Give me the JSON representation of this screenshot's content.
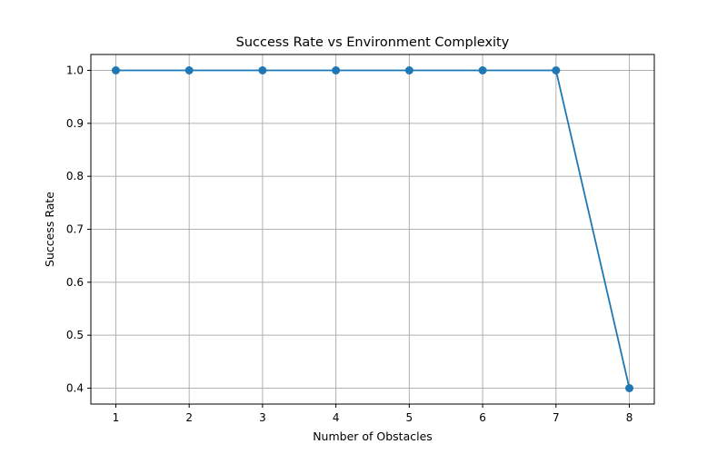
{
  "chart_data": {
    "type": "line",
    "title": "Success Rate vs Environment Complexity",
    "xlabel": "Number of Obstacles",
    "ylabel": "Success Rate",
    "xlim": [
      0.66,
      8.34
    ],
    "ylim": [
      0.37,
      1.03
    ],
    "xticks": [
      1,
      2,
      3,
      4,
      5,
      6,
      7,
      8
    ],
    "yticks": [
      0.4,
      0.5,
      0.6,
      0.7,
      0.8,
      0.9,
      1.0
    ],
    "ytick_labels": [
      "0.4",
      "0.5",
      "0.6",
      "0.7",
      "0.8",
      "0.9",
      "1.0"
    ],
    "grid": true,
    "series": [
      {
        "color": "#1f77b4",
        "marker": "circle",
        "x": [
          1,
          2,
          3,
          4,
          5,
          6,
          7,
          8
        ],
        "y": [
          1.0,
          1.0,
          1.0,
          1.0,
          1.0,
          1.0,
          1.0,
          0.4
        ]
      }
    ]
  }
}
